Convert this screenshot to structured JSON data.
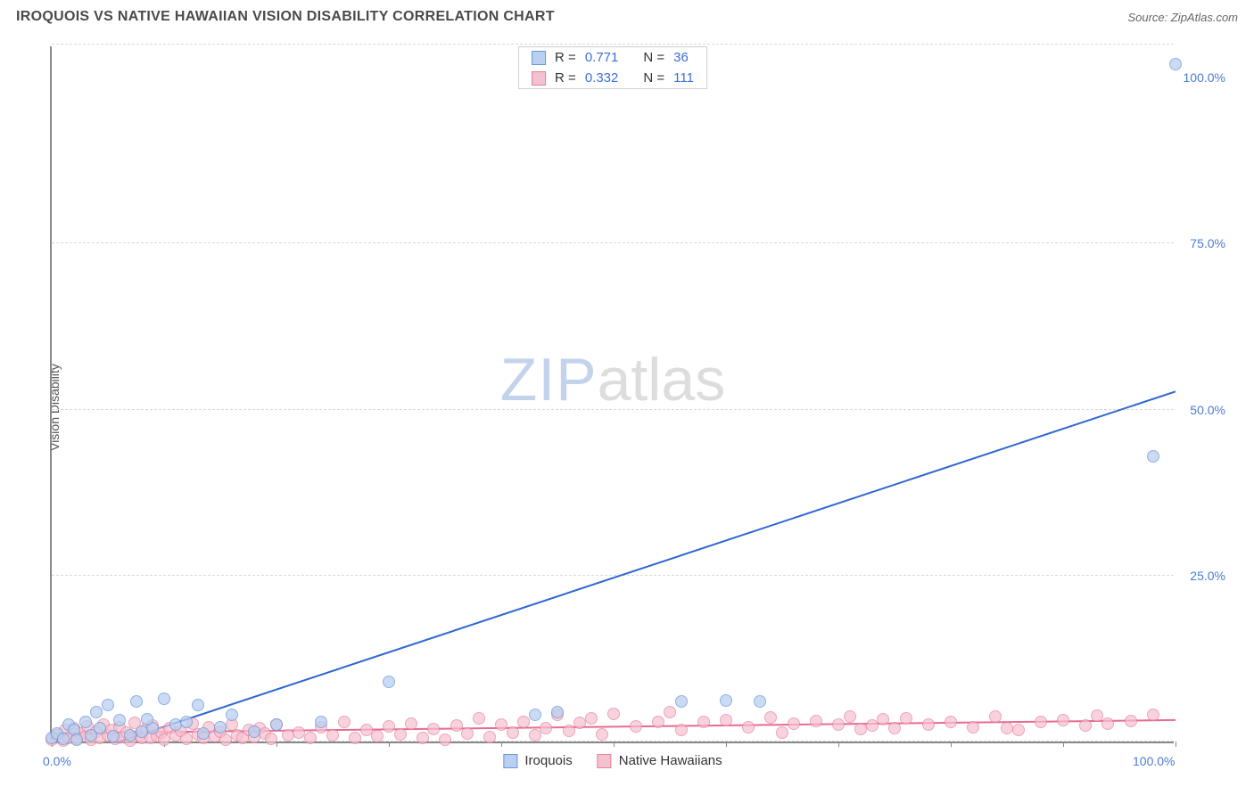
{
  "header": {
    "title": "IROQUOIS VS NATIVE HAWAIIAN VISION DISABILITY CORRELATION CHART",
    "source": "Source: ZipAtlas.com"
  },
  "chart": {
    "type": "scatter",
    "ylabel": "Vision Disability",
    "watermark": {
      "zip": "ZIP",
      "atlas": "atlas"
    },
    "xlim": [
      0,
      100
    ],
    "ylim": [
      0,
      105
    ],
    "xtick_marks": [
      0,
      10,
      20,
      30,
      40,
      50,
      60,
      70,
      80,
      90,
      100
    ],
    "xtick_labels": [
      {
        "v": 0,
        "label": "0.0%"
      },
      {
        "v": 100,
        "label": "100.0%"
      }
    ],
    "ytick_labels": [
      {
        "v": 25,
        "label": "25.0%"
      },
      {
        "v": 50,
        "label": "50.0%"
      },
      {
        "v": 75,
        "label": "75.0%"
      },
      {
        "v": 100,
        "label": "100.0%"
      }
    ],
    "gridlines_y": [
      0,
      25,
      50,
      75,
      105
    ],
    "background_color": "#ffffff",
    "grid_color": "#d8d8d8",
    "axis_color": "#888888",
    "tick_label_color": "#4b7bd1",
    "series": [
      {
        "name": "Iroquois",
        "color_fill": "#b9d0f0",
        "color_stroke": "#6a97dc",
        "marker_radius": 7,
        "marker_opacity": 0.75,
        "R": "0.771",
        "N": "36",
        "trend": {
          "x1": 2,
          "y1": -2,
          "x2": 100,
          "y2": 53,
          "color": "#2f66d0",
          "width": 2
        },
        "points": [
          [
            0,
            0.5
          ],
          [
            0.5,
            1.2
          ],
          [
            1,
            0.4
          ],
          [
            1.5,
            2.5
          ],
          [
            2,
            1.8
          ],
          [
            2.2,
            0.3
          ],
          [
            3,
            3.0
          ],
          [
            3.5,
            1.0
          ],
          [
            4,
            4.5
          ],
          [
            4.3,
            2.0
          ],
          [
            5,
            5.5
          ],
          [
            5.5,
            0.8
          ],
          [
            6,
            3.2
          ],
          [
            7,
            1.0
          ],
          [
            7.5,
            6.0
          ],
          [
            8,
            1.5
          ],
          [
            9,
            2.0
          ],
          [
            10,
            6.5
          ],
          [
            11,
            2.5
          ],
          [
            12,
            3.0
          ],
          [
            13,
            5.5
          ],
          [
            13.5,
            1.2
          ],
          [
            15,
            2.2
          ],
          [
            16,
            4.0
          ],
          [
            18,
            1.5
          ],
          [
            20,
            2.5
          ],
          [
            24,
            3.0
          ],
          [
            30,
            9.0
          ],
          [
            43,
            4.0
          ],
          [
            45,
            4.5
          ],
          [
            56,
            6.0
          ],
          [
            60,
            6.2
          ],
          [
            63,
            6.0
          ],
          [
            98,
            43.0
          ],
          [
            100,
            102.0
          ],
          [
            8.5,
            3.3
          ]
        ]
      },
      {
        "name": "Native Hawaiians",
        "color_fill": "#f6c1cf",
        "color_stroke": "#e57f9c",
        "marker_radius": 7,
        "marker_opacity": 0.7,
        "R": "0.332",
        "N": "111",
        "trend": {
          "x1": 0,
          "y1": 1.5,
          "x2": 100,
          "y2": 3.5,
          "color": "#e86b8f",
          "width": 2
        },
        "points": [
          [
            0,
            0.3
          ],
          [
            0.5,
            1.0
          ],
          [
            1,
            0.2
          ],
          [
            1.2,
            1.8
          ],
          [
            1.5,
            0.6
          ],
          [
            2,
            2.0
          ],
          [
            2.2,
            0.4
          ],
          [
            2.5,
            1.2
          ],
          [
            3,
            0.8
          ],
          [
            3.2,
            2.3
          ],
          [
            3.5,
            0.3
          ],
          [
            4,
            1.5
          ],
          [
            4.3,
            0.5
          ],
          [
            4.6,
            2.6
          ],
          [
            5,
            0.9
          ],
          [
            5.3,
            1.7
          ],
          [
            5.6,
            0.4
          ],
          [
            6,
            2.1
          ],
          [
            6.3,
            0.7
          ],
          [
            6.7,
            1.4
          ],
          [
            7,
            0.2
          ],
          [
            7.4,
            2.8
          ],
          [
            7.8,
            1.0
          ],
          [
            8,
            0.5
          ],
          [
            8.4,
            1.9
          ],
          [
            8.8,
            0.6
          ],
          [
            9,
            2.4
          ],
          [
            9.4,
            0.8
          ],
          [
            9.8,
            1.3
          ],
          [
            10,
            0.3
          ],
          [
            10.5,
            2.0
          ],
          [
            11,
            0.9
          ],
          [
            11.5,
            1.6
          ],
          [
            12,
            0.4
          ],
          [
            12.5,
            2.7
          ],
          [
            13,
            1.1
          ],
          [
            13.5,
            0.6
          ],
          [
            14,
            2.2
          ],
          [
            14.5,
            0.8
          ],
          [
            15,
            1.5
          ],
          [
            15.5,
            0.3
          ],
          [
            16,
            2.5
          ],
          [
            16.5,
            1.0
          ],
          [
            17,
            0.5
          ],
          [
            17.5,
            1.8
          ],
          [
            18,
            0.7
          ],
          [
            18.5,
            2.0
          ],
          [
            19,
            1.2
          ],
          [
            19.5,
            0.4
          ],
          [
            20,
            2.6
          ],
          [
            21,
            0.9
          ],
          [
            22,
            1.4
          ],
          [
            23,
            0.6
          ],
          [
            24,
            2.1
          ],
          [
            25,
            1.0
          ],
          [
            26,
            2.9
          ],
          [
            27,
            0.5
          ],
          [
            28,
            1.7
          ],
          [
            29,
            0.8
          ],
          [
            30,
            2.3
          ],
          [
            31,
            1.1
          ],
          [
            32,
            2.7
          ],
          [
            33,
            0.6
          ],
          [
            34,
            1.9
          ],
          [
            35,
            0.3
          ],
          [
            36,
            2.4
          ],
          [
            37,
            1.2
          ],
          [
            38,
            3.5
          ],
          [
            39,
            0.7
          ],
          [
            40,
            2.6
          ],
          [
            41,
            1.4
          ],
          [
            42,
            3.0
          ],
          [
            43,
            0.9
          ],
          [
            44,
            2.0
          ],
          [
            45,
            4.0
          ],
          [
            46,
            1.6
          ],
          [
            47,
            2.8
          ],
          [
            48,
            3.5
          ],
          [
            49,
            1.1
          ],
          [
            50,
            4.2
          ],
          [
            52,
            2.3
          ],
          [
            54,
            3.0
          ],
          [
            55,
            4.5
          ],
          [
            56,
            1.7
          ],
          [
            58,
            2.9
          ],
          [
            60,
            3.2
          ],
          [
            62,
            2.1
          ],
          [
            64,
            3.6
          ],
          [
            65,
            1.4
          ],
          [
            66,
            2.7
          ],
          [
            68,
            3.1
          ],
          [
            70,
            2.5
          ],
          [
            71,
            3.8
          ],
          [
            72,
            1.9
          ],
          [
            73,
            2.4
          ],
          [
            74,
            3.3
          ],
          [
            75,
            2.0
          ],
          [
            76,
            3.5
          ],
          [
            78,
            2.6
          ],
          [
            80,
            3.0
          ],
          [
            82,
            2.2
          ],
          [
            84,
            3.7
          ],
          [
            86,
            1.8
          ],
          [
            88,
            2.9
          ],
          [
            90,
            3.2
          ],
          [
            92,
            2.4
          ],
          [
            93,
            3.9
          ],
          [
            94,
            2.7
          ],
          [
            96,
            3.1
          ],
          [
            98,
            4.0
          ],
          [
            85,
            2.0
          ]
        ]
      }
    ],
    "legend_top": {
      "border_color": "#cfcfcf",
      "label_R": "R =",
      "label_N": "N ="
    },
    "legend_bottom": [
      {
        "label": "Iroquois",
        "fill": "#b9d0f0",
        "stroke": "#6a97dc"
      },
      {
        "label": "Native Hawaiians",
        "fill": "#f6c1cf",
        "stroke": "#e57f9c"
      }
    ]
  }
}
